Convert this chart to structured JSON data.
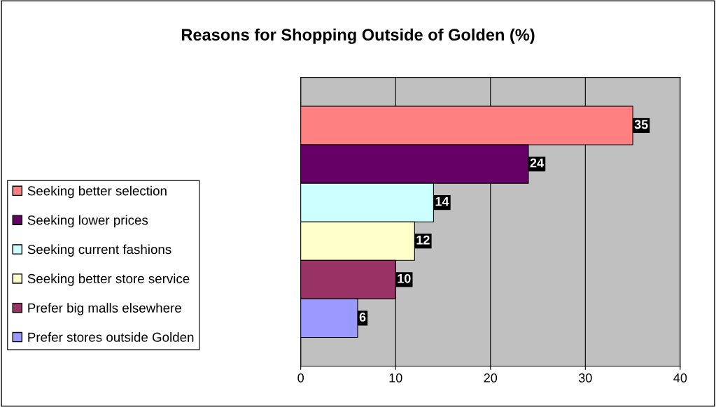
{
  "chart_data": {
    "type": "bar",
    "orientation": "horizontal",
    "title": "Reasons for Shopping Outside of Golden (%)",
    "categories": [
      null
    ],
    "series": [
      {
        "name": "Seeking better selection",
        "color": "#ff8080",
        "values": [
          35
        ]
      },
      {
        "name": "Seeking lower prices",
        "color": "#660066",
        "values": [
          24
        ]
      },
      {
        "name": "Seeking current fashions",
        "color": "#ccffff",
        "values": [
          14
        ]
      },
      {
        "name": "Seeking better store service",
        "color": "#ffffcc",
        "values": [
          12
        ]
      },
      {
        "name": "Prefer big malls elsewhere",
        "color": "#993366",
        "values": [
          10
        ]
      },
      {
        "name": "Prefer stores outside Golden",
        "color": "#9999ff",
        "values": [
          6
        ]
      }
    ],
    "xlim": [
      0,
      40
    ],
    "xticks": [
      0,
      10,
      20,
      30,
      40
    ],
    "grid": "x",
    "legend": "left",
    "data_labels": true
  }
}
